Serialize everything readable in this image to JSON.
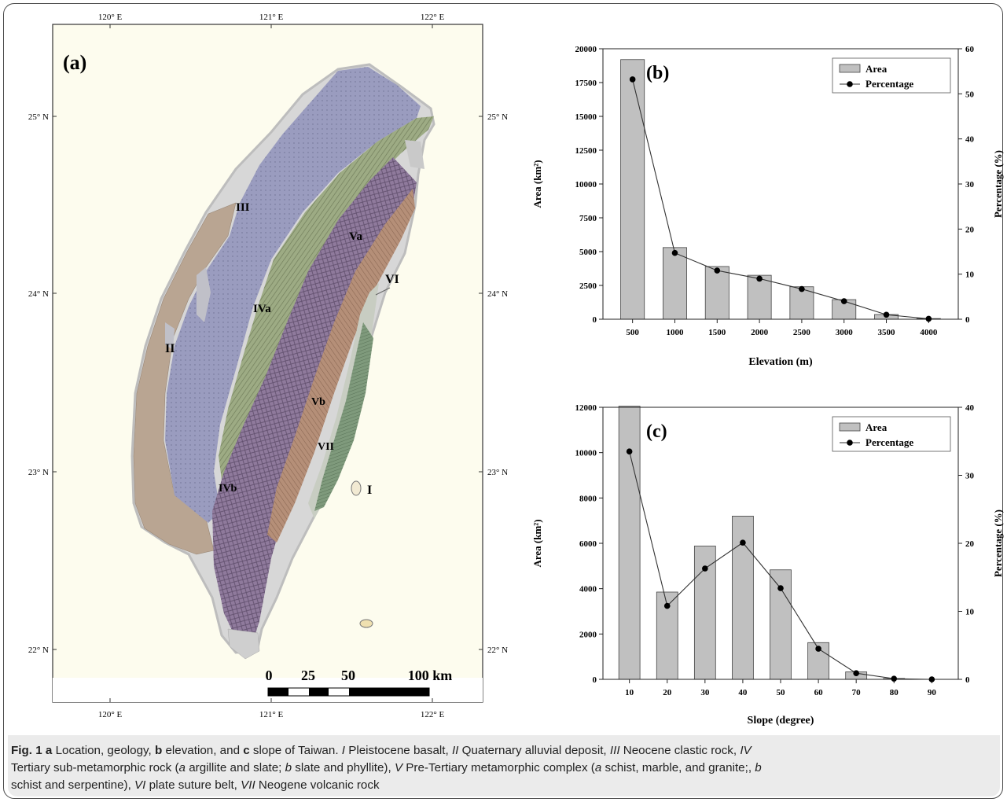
{
  "map": {
    "panel_label": "(a)",
    "top_ticks": [
      "120° E",
      "121° E",
      "122° E"
    ],
    "bottom_ticks": [
      "120° E",
      "121° E",
      "122° E"
    ],
    "lat_ticks": [
      "25° N",
      "24° N",
      "23° N",
      "22° N"
    ],
    "unit_labels": [
      "I",
      "II",
      "III",
      "IVa",
      "IVb",
      "Va",
      "Vb",
      "VI",
      "VII"
    ],
    "unit_colors": {
      "II": "#b9a592",
      "III": "#9a9cbf",
      "IVa": "#9dab84",
      "IVb": "#8f7a9c",
      "Va": "#b58f78",
      "VII": "#7f9a7c"
    },
    "scale_bar": {
      "ticks": [
        "0",
        "25",
        "50",
        "100 km"
      ]
    }
  },
  "chart_data": [
    {
      "type": "bar",
      "panel_label": "(b)",
      "categories": [
        "500",
        "1000",
        "1500",
        "2000",
        "2500",
        "3000",
        "3500",
        "4000"
      ],
      "series": [
        {
          "name": "Area",
          "type": "bar",
          "axis": "left",
          "values": [
            19200,
            5300,
            3900,
            3250,
            2400,
            1450,
            350,
            50
          ]
        },
        {
          "name": "Percentage",
          "type": "line",
          "axis": "right",
          "values": [
            53.2,
            14.7,
            10.8,
            9.0,
            6.7,
            4.0,
            1.0,
            0.1
          ]
        }
      ],
      "xlabel": "Elevation (m)",
      "ylabel": "Area (km²)",
      "y2label": "Percentage (%)",
      "ylim": [
        0,
        20000
      ],
      "y2lim": [
        0,
        60
      ],
      "yticks": [
        "0",
        "2500",
        "5000",
        "7500",
        "10000",
        "12500",
        "15000",
        "17500",
        "20000"
      ],
      "y2ticks": [
        "0",
        "10",
        "20",
        "30",
        "40",
        "50",
        "60"
      ],
      "legend": "top-right",
      "grid": false
    },
    {
      "type": "bar",
      "panel_label": "(c)",
      "categories": [
        "10",
        "20",
        "30",
        "40",
        "50",
        "60",
        "70",
        "80",
        "90"
      ],
      "series": [
        {
          "name": "Area",
          "type": "bar",
          "axis": "left",
          "values": [
            12050,
            3850,
            5880,
            7200,
            4830,
            1620,
            330,
            40,
            0
          ]
        },
        {
          "name": "Percentage",
          "type": "line",
          "axis": "right",
          "values": [
            33.5,
            10.8,
            16.3,
            20.1,
            13.4,
            4.5,
            0.9,
            0.1,
            0
          ]
        }
      ],
      "xlabel": "Slope (degree)",
      "ylabel": "Area (km²)",
      "y2label": "Percentage (%)",
      "ylim": [
        0,
        12000
      ],
      "y2lim": [
        0,
        40
      ],
      "yticks": [
        "0",
        "2000",
        "4000",
        "6000",
        "8000",
        "10000",
        "12000"
      ],
      "y2ticks": [
        "0",
        "10",
        "20",
        "30",
        "40"
      ],
      "legend": "top-right",
      "grid": false
    }
  ],
  "caption": {
    "fig": "Fig. 1",
    "p1a": " a",
    "p1b": " Location, geology, ",
    "p1c": "b",
    "p1d": " elevation, and ",
    "p1e": "c",
    "p1f": " slope of Taiwan. ",
    "u1": "I",
    "d1": " Pleistocene basalt, ",
    "u2": "II",
    "d2": " Quaternary alluvial deposit, ",
    "u3": "III",
    "d3": " Neocene clastic rock, ",
    "u4": "IV",
    "d4a": "Tertiary sub-metamorphic rock (",
    "a1": "a",
    "d4b": " argillite and slate; ",
    "b1": "b",
    "d4c": " slate and phyllite), ",
    "u5": "V",
    "d5a": " Pre-Tertiary metamorphic complex (",
    "a2": "a",
    "d5b": " schist, marble, and granite;, ",
    "b2": "b",
    "d5c": "schist and serpentine), ",
    "u6": "VI",
    "d6": " plate suture belt, ",
    "u7": "VII",
    "d7": " Neogene volcanic rock"
  }
}
